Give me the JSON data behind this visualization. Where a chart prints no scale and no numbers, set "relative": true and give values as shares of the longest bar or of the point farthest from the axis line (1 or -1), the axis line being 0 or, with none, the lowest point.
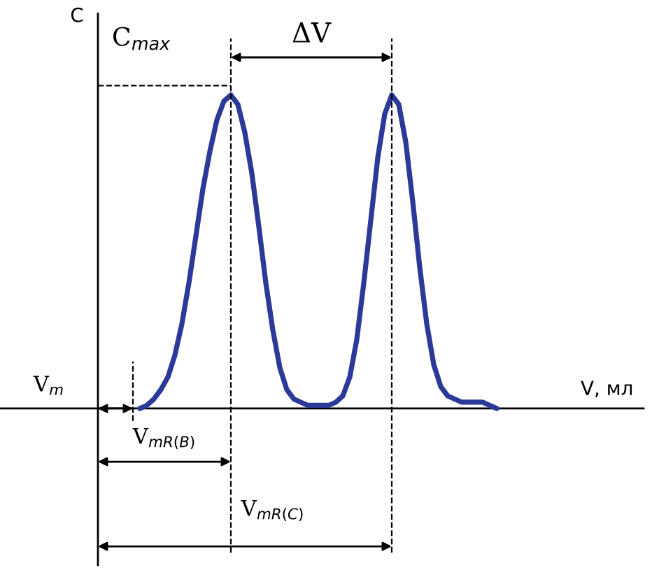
{
  "chart_data": {
    "type": "line",
    "relative": true,
    "ylabel": "C",
    "xlabel": "V, мл",
    "categories": [
      null,
      null,
      null,
      null,
      null,
      null,
      null,
      null,
      null,
      null,
      null,
      null,
      null,
      null,
      null,
      null,
      null,
      null,
      null,
      null,
      null,
      null,
      null,
      null,
      null,
      null,
      null,
      null,
      null,
      null,
      null,
      null,
      null,
      null,
      null,
      null,
      null,
      null,
      null,
      null,
      null,
      null,
      null,
      null,
      null,
      null,
      null,
      null,
      null,
      null,
      null,
      null,
      null,
      null,
      null,
      null,
      null,
      null,
      null,
      null,
      null,
      null,
      null,
      null,
      null,
      null,
      null,
      null,
      null,
      null,
      null,
      null,
      null,
      null,
      null,
      null,
      null,
      null,
      null
    ],
    "color": "#2b3a98",
    "values": [
      null,
      null,
      null,
      null,
      null,
      null,
      0,
      0.01,
      0.03,
      0.06,
      0.1,
      0.17,
      0.27,
      0.4,
      0.55,
      0.7,
      0.82,
      0.92,
      0.98,
      1,
      0.97,
      0.88,
      0.75,
      0.58,
      0.4,
      0.25,
      0.13,
      0.06,
      0.03,
      0.02,
      0.01,
      0.01,
      0.01,
      0.01,
      0.02,
      0.04,
      0.1,
      0.22,
      0.4,
      0.6,
      0.8,
      0.94,
      1,
      0.97,
      0.85,
      0.66,
      0.45,
      0.27,
      0.14,
      0.07,
      0.04,
      0.03,
      0.02,
      0.02,
      0.02,
      0.02,
      0.01,
      0,
      null,
      null,
      null,
      null,
      null,
      null,
      null,
      null,
      null,
      null,
      null,
      null,
      null,
      null,
      null,
      null,
      null,
      null,
      null,
      null,
      null
    ],
    "annotations": [
      "C$_{max}$",
      "ΔV",
      "V$_{m}$",
      "V$_{mR(B)}$",
      "V$_{mR(C)}$"
    ]
  }
}
